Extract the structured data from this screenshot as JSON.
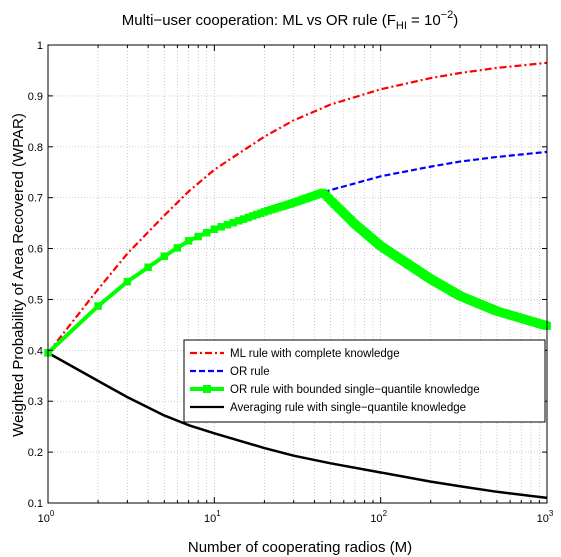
{
  "chart_data": {
    "type": "line",
    "title": {
      "main": "Multi−user cooperation: ML vs OR rule (F",
      "sub": "HI",
      "mid": " = 10",
      "sup": "−2",
      "end": ")"
    },
    "xlabel": "Number of cooperating radios (M)",
    "ylabel": "Weighted Probability of Area Recovered (WPAR)",
    "x_scale": "log",
    "xlim": [
      1,
      1000
    ],
    "ylim": [
      0.1,
      1.0
    ],
    "x_ticks": [
      {
        "value": 1,
        "base": "10",
        "exp": "0"
      },
      {
        "value": 10,
        "base": "10",
        "exp": "1"
      },
      {
        "value": 100,
        "base": "10",
        "exp": "2"
      },
      {
        "value": 1000,
        "base": "10",
        "exp": "3"
      }
    ],
    "y_ticks": [
      {
        "value": 0.1,
        "label": "0.1"
      },
      {
        "value": 0.2,
        "label": "0.2"
      },
      {
        "value": 0.3,
        "label": "0.3"
      },
      {
        "value": 0.4,
        "label": "0.4"
      },
      {
        "value": 0.5,
        "label": "0.5"
      },
      {
        "value": 0.6,
        "label": "0.6"
      },
      {
        "value": 0.7,
        "label": "0.7"
      },
      {
        "value": 0.8,
        "label": "0.8"
      },
      {
        "value": 0.9,
        "label": "0.9"
      },
      {
        "value": 1.0,
        "label": "1"
      }
    ],
    "grid": true,
    "legend_position": "lower-right",
    "series": [
      {
        "name": "ML rule with complete knowledge",
        "color": "#ff0000",
        "line_style": "dashdot",
        "x": [
          1,
          2,
          3,
          5,
          7,
          10,
          20,
          30,
          50,
          100,
          200,
          300,
          500,
          1000
        ],
        "y": [
          0.395,
          0.52,
          0.59,
          0.665,
          0.712,
          0.755,
          0.82,
          0.852,
          0.883,
          0.913,
          0.935,
          0.945,
          0.955,
          0.965
        ]
      },
      {
        "name": "OR rule",
        "color": "#0000ff",
        "line_style": "dashed",
        "x": [
          1,
          2,
          3,
          5,
          7,
          10,
          20,
          30,
          45,
          50,
          70,
          100,
          200,
          300,
          500,
          1000
        ],
        "y": [
          0.395,
          0.487,
          0.535,
          0.585,
          0.615,
          0.638,
          0.672,
          0.69,
          0.71,
          0.715,
          0.728,
          0.742,
          0.761,
          0.771,
          0.78,
          0.79
        ]
      },
      {
        "name": "OR rule with bounded single−quantile knowledge",
        "color": "#00ff00",
        "line_style": "solid",
        "marker": "square",
        "x": [
          1,
          2,
          3,
          5,
          7,
          10,
          20,
          30,
          45,
          50,
          70,
          100,
          200,
          300,
          500,
          1000
        ],
        "y": [
          0.395,
          0.487,
          0.535,
          0.585,
          0.615,
          0.638,
          0.672,
          0.69,
          0.71,
          0.695,
          0.648,
          0.605,
          0.54,
          0.507,
          0.477,
          0.448
        ]
      },
      {
        "name": "Averaging rule with single−quantile knowledge",
        "color": "#000000",
        "line_style": "solid",
        "x": [
          1,
          2,
          3,
          5,
          7,
          10,
          20,
          30,
          50,
          100,
          200,
          300,
          500,
          1000
        ],
        "y": [
          0.395,
          0.34,
          0.308,
          0.272,
          0.253,
          0.237,
          0.208,
          0.193,
          0.178,
          0.16,
          0.142,
          0.133,
          0.122,
          0.11
        ]
      }
    ]
  }
}
